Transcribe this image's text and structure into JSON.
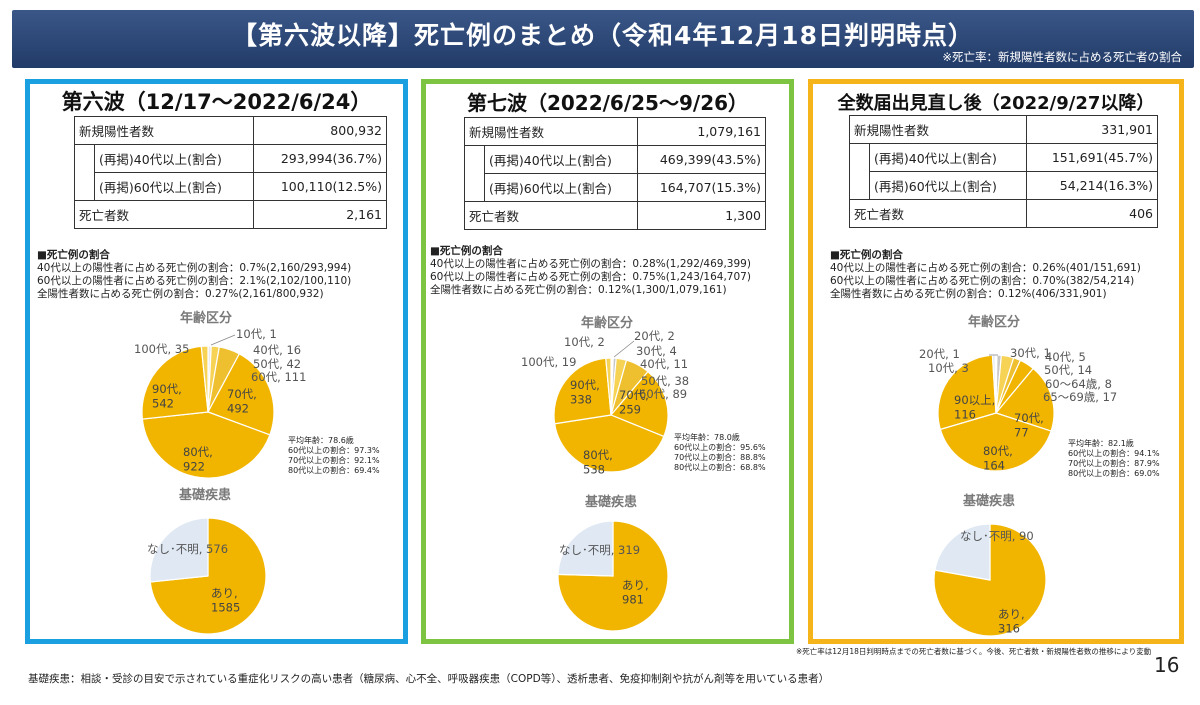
{
  "header": {
    "title": "【第六波以降】死亡例のまとめ（令和4年12月18日判明時点）",
    "note": "※死亡率：新規陽性者数に占める死亡者の割合"
  },
  "panels": [
    {
      "title": "第六波（12/17～2022/6/24）",
      "color": "#1aa0e0",
      "table": {
        "new_positive_label": "新規陽性者数",
        "new_positive": "800,932",
        "over40_label": "(再掲)40代以上(割合)",
        "over40": "293,994(36.7%)",
        "over60_label": "(再掲)60代以上(割合)",
        "over60": "100,110(12.5%)",
        "deaths_label": "死亡者数",
        "deaths": "2,161"
      },
      "ratio": {
        "title": "■死亡例の割合",
        "line1": "40代以上の陽性者に占める死亡例の割合：0.7%(2,160/293,994)",
        "line2": "60代以上の陽性者に占める死亡例の割合：2.1%(2,102/100,110)",
        "line3": "全陽性者数に占める死亡例の割合：0.27%(2,161/800,932)"
      },
      "stats": [
        "平均年齢：78.6歳",
        "60代以上の割合：97.3%",
        "70代以上の割合：92.1%",
        "80代以上の割合：69.4%"
      ]
    },
    {
      "title": "第七波（2022/6/25～9/26）",
      "color": "#7cc441",
      "table": {
        "new_positive_label": "新規陽性者数",
        "new_positive": "1,079,161",
        "over40_label": "(再掲)40代以上(割合)",
        "over40": "469,399(43.5%)",
        "over60_label": "(再掲)60代以上(割合)",
        "over60": "164,707(15.3%)",
        "deaths_label": "死亡者数",
        "deaths": "1,300"
      },
      "ratio": {
        "title": "■死亡例の割合",
        "line1": "40代以上の陽性者に占める死亡例の割合：0.28%(1,292/469,399)",
        "line2": "60代以上の陽性者に占める死亡例の割合：0.75%(1,243/164,707)",
        "line3": "全陽性者数に占める死亡例の割合：0.12%(1,300/1,079,161)"
      },
      "stats": [
        "平均年齢：78.0歳",
        "60代以上の割合：95.6%",
        "70代以上の割合：88.8%",
        "80代以上の割合：68.8%"
      ]
    },
    {
      "title": "全数届出見直し後（2022/9/27以降）",
      "color": "#f5b51a",
      "table": {
        "new_positive_label": "新規陽性者数",
        "new_positive": "331,901",
        "over40_label": "(再掲)40代以上(割合)",
        "over40": "151,691(45.7%)",
        "over60_label": "(再掲)60代以上(割合)",
        "over60": "54,214(16.3%)",
        "deaths_label": "死亡者数",
        "deaths": "406"
      },
      "ratio": {
        "title": "■死亡例の割合",
        "line1": "40代以上の陽性者に占める死亡例の割合：0.26%(401/151,691)",
        "line2": "60代以上の陽性者に占める死亡例の割合：0.70%(382/54,214)",
        "line3": "全陽性者数に占める死亡例の割合：0.12%(406/331,901)"
      },
      "stats": [
        "平均年齢：82.1歳",
        "60代以上の割合：94.1%",
        "70代以上の割合：87.9%",
        "80代以上の割合：69.0%"
      ]
    }
  ],
  "chart_data": [
    {
      "type": "pie",
      "title": "年齢区分",
      "slices": [
        {
          "label": "10代, 1",
          "value": 1,
          "color": "#dfe8f3"
        },
        {
          "label": "40代, 16",
          "value": 16,
          "color": "#e8e8e8"
        },
        {
          "label": "50代, 42",
          "value": 42,
          "color": "#f6d255"
        },
        {
          "label": "60代, 111",
          "value": 111,
          "color": "#eebf2e"
        },
        {
          "label": "70代, 492",
          "value": 492,
          "color": "#f1b500"
        },
        {
          "label": "80代, 922",
          "value": 922,
          "color": "#f1b500"
        },
        {
          "label": "90代, 542",
          "value": 542,
          "color": "#f1b500"
        },
        {
          "label": "100代, 35",
          "value": 35,
          "color": "#f6d255"
        }
      ]
    },
    {
      "type": "pie",
      "title": "基礎疾患",
      "slices": [
        {
          "label": "あり, 1585",
          "value": 1585,
          "color": "#f1b500"
        },
        {
          "label": "なし･不明, 576",
          "value": 576,
          "color": "#dfe8f3"
        }
      ]
    },
    {
      "type": "pie",
      "title": "年齢区分",
      "slices": [
        {
          "label": "10代, 2",
          "value": 2,
          "color": "#dfe8f3"
        },
        {
          "label": "20代, 2",
          "value": 2,
          "color": "#e2e2e2"
        },
        {
          "label": "30代, 4",
          "value": 4,
          "color": "#d4d4d4"
        },
        {
          "label": "40代, 11",
          "value": 11,
          "color": "#c8c8c8"
        },
        {
          "label": "50代, 38",
          "value": 38,
          "color": "#f6d255"
        },
        {
          "label": "60代, 89",
          "value": 89,
          "color": "#eebf2e"
        },
        {
          "label": "70代, 259",
          "value": 259,
          "color": "#f1b500"
        },
        {
          "label": "80代, 538",
          "value": 538,
          "color": "#f1b500"
        },
        {
          "label": "90代, 338",
          "value": 338,
          "color": "#f1b500"
        },
        {
          "label": "100代, 19",
          "value": 19,
          "color": "#f6d255"
        }
      ]
    },
    {
      "type": "pie",
      "title": "基礎疾患",
      "slices": [
        {
          "label": "あり, 981",
          "value": 981,
          "color": "#f1b500"
        },
        {
          "label": "なし･不明, 319",
          "value": 319,
          "color": "#dfe8f3"
        }
      ]
    },
    {
      "type": "pie",
      "title": "年齢区分",
      "slices": [
        {
          "label": "30代, 1",
          "value": 1,
          "color": "#d4d4d4"
        },
        {
          "label": "40代, 5",
          "value": 5,
          "color": "#c8c8c8"
        },
        {
          "label": "50代, 14",
          "value": 14,
          "color": "#f6d255"
        },
        {
          "label": "60～64歳, 8",
          "value": 8,
          "color": "#eebf2e"
        },
        {
          "label": "65～69歳, 17",
          "value": 17,
          "color": "#f1b500"
        },
        {
          "label": "70代, 77",
          "value": 77,
          "color": "#f1b500"
        },
        {
          "label": "80代, 164",
          "value": 164,
          "color": "#f1b500"
        },
        {
          "label": "90以上, 116",
          "value": 116,
          "color": "#f1b500"
        },
        {
          "label": "10代, 3",
          "value": 3,
          "color": "#dfe8f3"
        },
        {
          "label": "20代, 1",
          "value": 1,
          "color": "#e2e2e2"
        }
      ]
    },
    {
      "type": "pie",
      "title": "基礎疾患",
      "slices": [
        {
          "label": "あり, 316",
          "value": 316,
          "color": "#f1b500"
        },
        {
          "label": "なし･不明, 90",
          "value": 90,
          "color": "#dfe8f3"
        }
      ]
    }
  ],
  "footnote": "基礎疾患：相談・受診の目安で示されている重症化リスクの高い患者（糖尿病、心不全、呼吸器疾患（COPD等）、透析患者、免疫抑制剤や抗がん剤等を用いている患者）",
  "note_right": "※死亡率は12月18日判明時点までの死亡者数に基づく。今後、死亡者数・新規陽性者数の推移により変動",
  "page_number": "16"
}
